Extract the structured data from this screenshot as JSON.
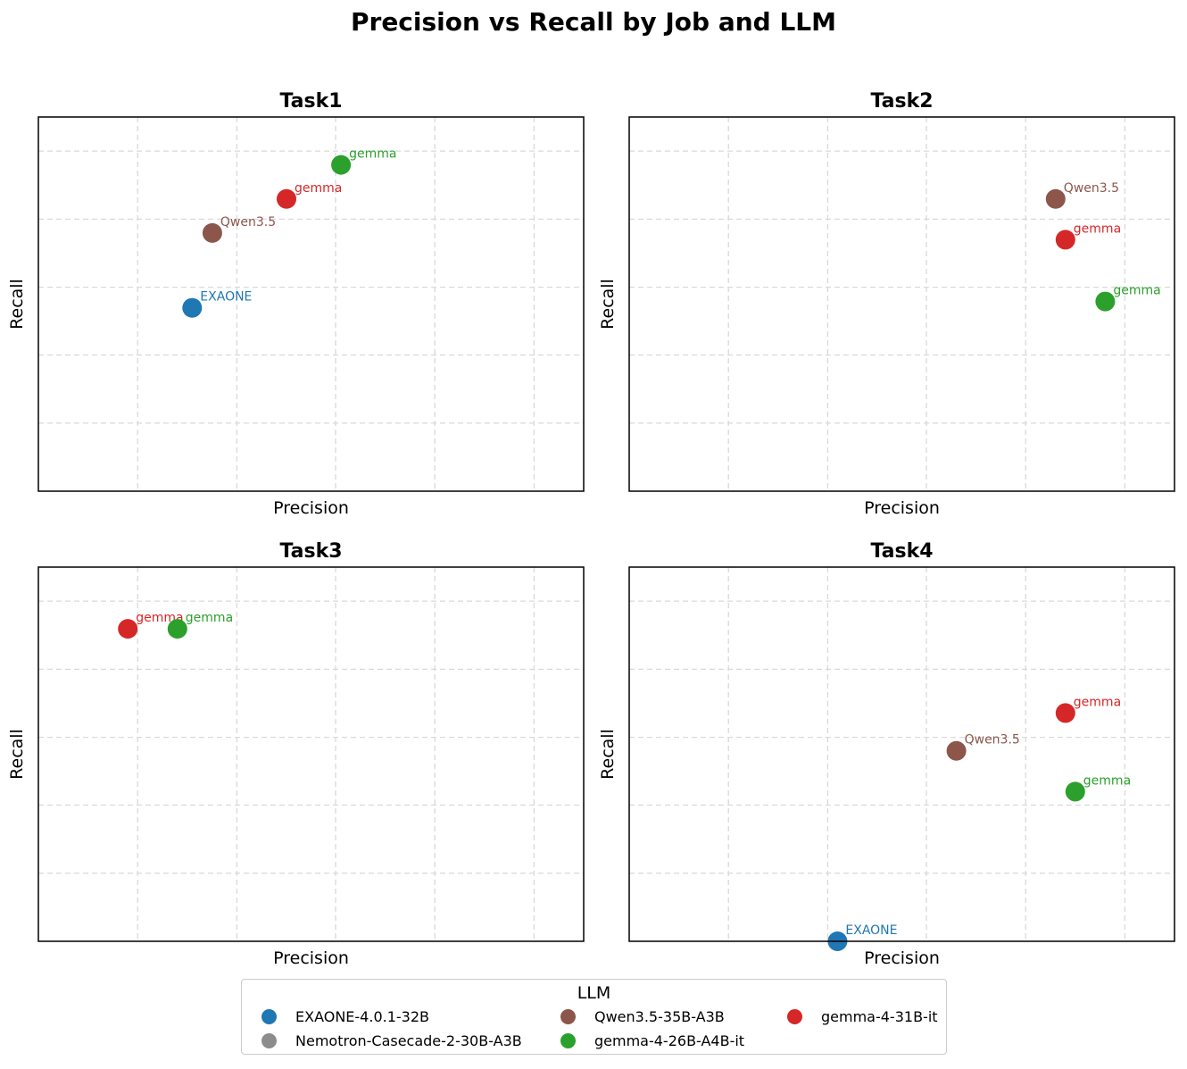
{
  "title": "Precision vs Recall by Job and LLM",
  "colors": {
    "EXAONE-4.0.1-32B": "#1f77b4",
    "Nemotron-Casecade-2-30B-A3B": "#8c8c8c",
    "Qwen3.5-35B-A3B": "#8c564b",
    "gemma-4-26B-A4B-it": "#2ca02c",
    "gemma-4-31B-it": "#d62728"
  },
  "legend": {
    "title": "LLM",
    "items": [
      {
        "label": "EXAONE-4.0.1-32B",
        "color": "#1f77b4"
      },
      {
        "label": "Nemotron-Casecade-2-30B-A3B",
        "color": "#8c8c8c"
      },
      {
        "label": "Qwen3.5-35B-A3B",
        "color": "#8c564b"
      },
      {
        "label": "gemma-4-26B-A4B-it",
        "color": "#2ca02c"
      },
      {
        "label": "gemma-4-31B-it",
        "color": "#d62728"
      }
    ]
  },
  "chart_data": [
    {
      "type": "scatter",
      "title": "Task1",
      "xlabel": "Precision",
      "ylabel": "Recall",
      "xlim": [
        0,
        1
      ],
      "ylim": [
        0,
        1
      ],
      "grid": true,
      "points": [
        {
          "llm": "EXAONE-4.0.1-32B",
          "label": "EXAONE",
          "x": 0.282,
          "y": 0.49
        },
        {
          "llm": "Qwen3.5-35B-A3B",
          "label": "Qwen3.5",
          "x": 0.319,
          "y": 0.69
        },
        {
          "llm": "gemma-4-31B-it",
          "label": "gemma",
          "x": 0.455,
          "y": 0.781
        },
        {
          "llm": "gemma-4-26B-A4B-it",
          "label": "gemma",
          "x": 0.555,
          "y": 0.872
        }
      ]
    },
    {
      "type": "scatter",
      "title": "Task2",
      "xlabel": "Precision",
      "ylabel": "Recall",
      "xlim": [
        0,
        1
      ],
      "ylim": [
        0,
        1
      ],
      "grid": true,
      "points": [
        {
          "llm": "Qwen3.5-35B-A3B",
          "label": "Qwen3.5",
          "x": 0.782,
          "y": 0.781
        },
        {
          "llm": "gemma-4-31B-it",
          "label": "gemma",
          "x": 0.8,
          "y": 0.672
        },
        {
          "llm": "gemma-4-26B-A4B-it",
          "label": "gemma",
          "x": 0.873,
          "y": 0.507
        }
      ]
    },
    {
      "type": "scatter",
      "title": "Task3",
      "xlabel": "Precision",
      "ylabel": "Recall",
      "xlim": [
        0,
        1
      ],
      "ylim": [
        0,
        1
      ],
      "grid": true,
      "points": [
        {
          "llm": "gemma-4-31B-it",
          "label": "gemma",
          "x": 0.164,
          "y": 0.835
        },
        {
          "llm": "gemma-4-26B-A4B-it",
          "label": "gemma",
          "x": 0.255,
          "y": 0.835
        }
      ]
    },
    {
      "type": "scatter",
      "title": "Task4",
      "xlabel": "Precision",
      "ylabel": "Recall",
      "xlim": [
        0,
        1
      ],
      "ylim": [
        0,
        1
      ],
      "grid": true,
      "points": [
        {
          "llm": "EXAONE-4.0.1-32B",
          "label": "EXAONE",
          "x": 0.382,
          "y": 0.0
        },
        {
          "llm": "Qwen3.5-35B-A3B",
          "label": "Qwen3.5",
          "x": 0.6,
          "y": 0.509
        },
        {
          "llm": "gemma-4-31B-it",
          "label": "gemma",
          "x": 0.8,
          "y": 0.61
        },
        {
          "llm": "gemma-4-26B-A4B-it",
          "label": "gemma",
          "x": 0.818,
          "y": 0.4
        }
      ]
    }
  ]
}
